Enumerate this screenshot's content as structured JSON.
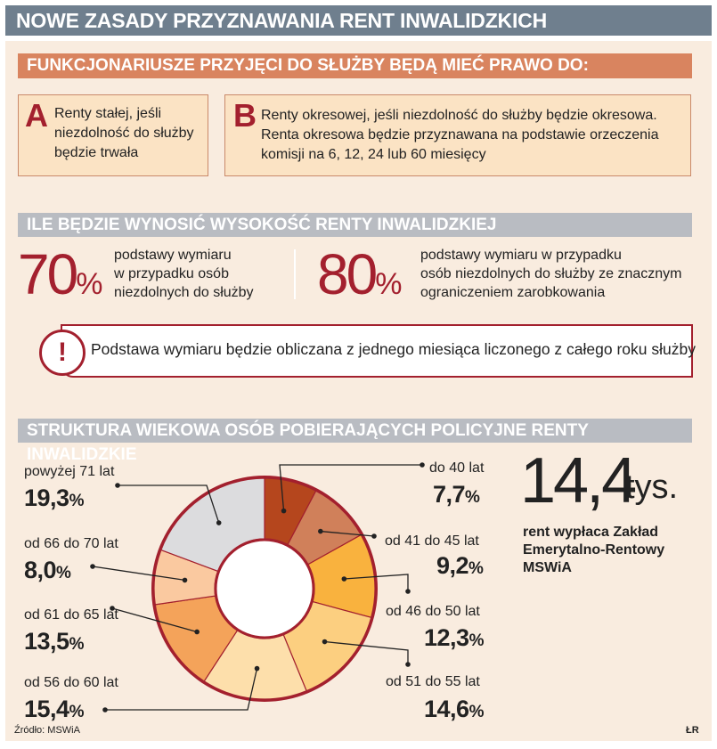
{
  "title": "NOWE ZASADY PRZYZNAWANIA RENT INWALIDZKICH",
  "section1": {
    "heading": "FUNKCJONARIUSZE PRZYJĘCI DO SŁUŻBY BĘDĄ MIEĆ PRAWO DO:",
    "box_a": {
      "letter": "A",
      "lines": [
        "Renty stałej, jeśli",
        "niezdolność do służby",
        "będzie trwała"
      ]
    },
    "box_b": {
      "letter": "B",
      "lines": [
        "Renty okresowej, jeśli niezdolność do służby będzie okresowa.",
        "Renta okresowa będzie przyznawana na podstawie orzeczenia",
        "komisji na 6, 12, 24 lub 60 miesięcy"
      ]
    }
  },
  "section2": {
    "heading": "ILE BĘDZIE WYNOSIĆ WYSOKOŚĆ RENTY INWALIDZKIEJ",
    "pct_sign": "%",
    "left": {
      "number": "70",
      "lines": [
        "podstawy wymiaru",
        "w przypadku osób",
        "niezdolnych do służby"
      ]
    },
    "right": {
      "number": "80",
      "lines": [
        "podstawy wymiaru w przypadku",
        "osób niezdolnych do służby ze znacznym",
        "ograniczeniem zarobkowania"
      ]
    },
    "note_icon": "exclamation-icon",
    "note_mark": "!",
    "note": "Podstawa wymiaru będzie obliczana z jednego miesiąca liczonego z całego roku służby"
  },
  "section3": {
    "heading": "STRUKTURA WIEKOWA OSÓB POBIERAJĄCYCH POLICYJNE RENTY INWALIDZKIE",
    "stat": {
      "number": "14,4",
      "unit": "tys.",
      "lines": [
        "rent wypłaca Zakład",
        "Emerytalno-Rentowy",
        "MSWiA"
      ]
    }
  },
  "chart_data": {
    "type": "pie",
    "title": "STRUKTURA WIEKOWA OSÓB POBIERAJĄCYCH POLICYJNE RENTY INWALIDZKIE",
    "categories": [
      "do 40 lat",
      "od 41 do 45 lat",
      "od 46 do 50 lat",
      "od 51 do 55 lat",
      "od 56 do 60 lat",
      "od 61 do 65 lat",
      "od 66 do 70 lat",
      "powyżej 71 lat"
    ],
    "values": [
      7.7,
      9.2,
      12.3,
      14.6,
      15.4,
      13.5,
      8.0,
      19.3
    ],
    "value_labels": [
      "7,7",
      "9,2",
      "12,3",
      "14,6",
      "15,4",
      "13,5",
      "8,0",
      "19,3"
    ],
    "unit": "%",
    "colors": [
      "#b5461d",
      "#d0805a",
      "#f9b23e",
      "#fccf80",
      "#fddfab",
      "#f4a35a",
      "#fac9a0",
      "#dcdcde"
    ],
    "hole": true
  },
  "footer": {
    "source": "Źródło: MSWiA",
    "credit": "ŁR"
  },
  "colors": {
    "title_bar": "#6f7f8e",
    "section_orange": "#d9845f",
    "section_grey": "#b9bcc2",
    "accent_red": "#a3202e",
    "panel_bg": "#f9ecdf",
    "box_bg": "#fbe3c4"
  }
}
